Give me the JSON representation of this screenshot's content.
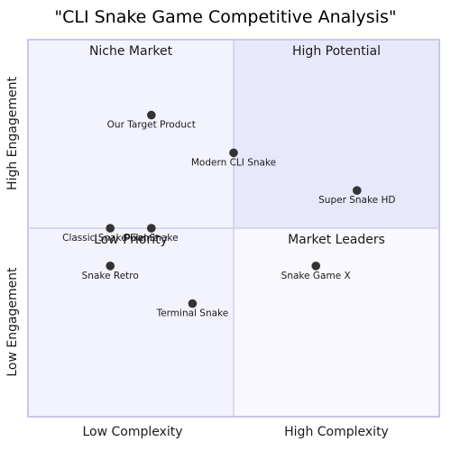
{
  "chart_data": {
    "type": "quadrant",
    "title": "\"CLI Snake Game Competitive Analysis\"",
    "x_axis": {
      "low_label": "Low Complexity",
      "high_label": "High Complexity",
      "range": [
        0,
        1
      ]
    },
    "y_axis": {
      "low_label": "Low Engagement",
      "high_label": "High Engagement",
      "range": [
        0,
        1
      ]
    },
    "quadrants": {
      "top_left": "Niche Market",
      "top_right": "High Potential",
      "bottom_left": "Low Priority",
      "bottom_right": "Market Leaders"
    },
    "colors": {
      "top_left": "#f3f3fd",
      "top_right": "#e8e8fb",
      "bottom_left": "#f3f3fd",
      "bottom_right": "#f8f8fe",
      "border": "#c8c8ec",
      "point": "#333333"
    },
    "points": [
      {
        "name": "Our Target Product",
        "x": 0.3,
        "y": 0.8
      },
      {
        "name": "Modern CLI Snake",
        "x": 0.5,
        "y": 0.7
      },
      {
        "name": "Super Snake HD",
        "x": 0.8,
        "y": 0.6
      },
      {
        "name": "Classic Snake Game",
        "x": 0.2,
        "y": 0.5
      },
      {
        "name": "Pixel Snake",
        "x": 0.3,
        "y": 0.5
      },
      {
        "name": "Snake Game X",
        "x": 0.7,
        "y": 0.4
      },
      {
        "name": "Snake Retro",
        "x": 0.2,
        "y": 0.4
      },
      {
        "name": "Terminal Snake",
        "x": 0.4,
        "y": 0.3
      }
    ]
  }
}
